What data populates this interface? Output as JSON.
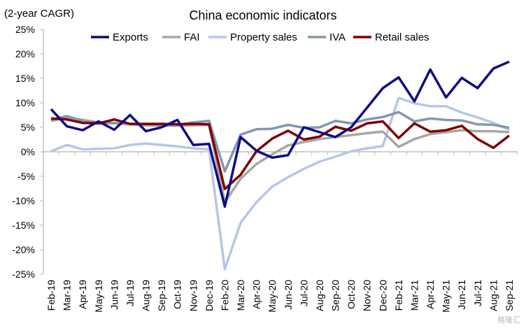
{
  "chart_data": {
    "type": "line",
    "title": "China economic indicators",
    "ylabel": "(2-year CAGR)",
    "xlabel": "",
    "ylim": [
      -25,
      25
    ],
    "yticks": [
      25,
      20,
      15,
      10,
      5,
      0,
      -5,
      -10,
      -15,
      -20,
      -25
    ],
    "ytick_labels": [
      "25%",
      "20%",
      "15%",
      "10%",
      "5%",
      "0%",
      "-5%",
      "-10%",
      "-15%",
      "-20%",
      "-25%"
    ],
    "grid": false,
    "legend": "top",
    "categories": [
      "Feb-19",
      "Mar-19",
      "Apr-19",
      "May-19",
      "Jun-19",
      "Jul-19",
      "Aug-19",
      "Sep-19",
      "Oct-19",
      "Nov-19",
      "Dec-19",
      "Feb-20",
      "Mar-20",
      "Apr-20",
      "May-20",
      "Jun-20",
      "Jul-20",
      "Aug-20",
      "Sep-20",
      "Oct-20",
      "Nov-20",
      "Dec-20",
      "Feb-21",
      "Mar-21",
      "Apr-21",
      "May-21",
      "Jun-21",
      "Jul-21",
      "Aug-21",
      "Sep-21"
    ],
    "series": [
      {
        "name": "Exports",
        "color": "#0c0c84",
        "values": [
          8.7,
          5.2,
          4.4,
          6.2,
          4.5,
          7.5,
          4.2,
          5.0,
          6.5,
          1.4,
          1.6,
          -11.2,
          3.0,
          0.2,
          -1.2,
          -0.7,
          5.0,
          4.0,
          3.0,
          5.0,
          9.0,
          13.0,
          15.2,
          10.3,
          16.8,
          11.1,
          15.1,
          13.0,
          17.0,
          18.4
        ]
      },
      {
        "name": "FAI",
        "color": "#a6a6a6",
        "values": [
          6.3,
          7.0,
          6.5,
          6.0,
          5.8,
          5.6,
          5.4,
          5.4,
          5.3,
          5.4,
          5.5,
          -10.3,
          -5.5,
          -2.5,
          -0.5,
          1.3,
          2.0,
          2.6,
          3.0,
          3.4,
          3.8,
          4.1,
          1.0,
          2.6,
          3.6,
          4.0,
          4.4,
          4.2,
          4.2,
          4.0
        ]
      },
      {
        "name": "Property sales",
        "color": "#b4c7e7",
        "values": [
          0.1,
          1.4,
          0.5,
          0.6,
          0.7,
          1.4,
          1.7,
          1.4,
          1.1,
          0.7,
          0.5,
          -24.0,
          -14.5,
          -10.3,
          -7.1,
          -5.2,
          -3.5,
          -2.0,
          -1.0,
          0.1,
          0.7,
          1.2,
          11.0,
          9.9,
          9.3,
          9.3,
          8.0,
          7.0,
          5.9,
          4.5
        ]
      },
      {
        "name": "IVA",
        "color": "#8497b0",
        "values": [
          6.5,
          7.3,
          6.3,
          5.8,
          5.9,
          5.6,
          5.6,
          5.4,
          5.5,
          6.0,
          6.3,
          -4.0,
          3.5,
          4.6,
          4.7,
          5.5,
          4.9,
          5.0,
          6.3,
          5.8,
          6.6,
          7.1,
          8.1,
          6.2,
          6.8,
          6.5,
          6.4,
          5.6,
          5.5,
          4.9
        ]
      },
      {
        "name": "Retail sales",
        "color": "#800000",
        "values": [
          6.8,
          6.6,
          5.9,
          5.8,
          6.6,
          5.7,
          5.7,
          5.7,
          5.6,
          5.7,
          5.6,
          -7.6,
          -4.7,
          0.1,
          2.7,
          4.3,
          2.5,
          3.1,
          5.1,
          4.3,
          5.8,
          6.2,
          2.8,
          5.8,
          4.1,
          4.4,
          5.3,
          2.6,
          0.8,
          3.3
        ]
      }
    ]
  },
  "watermark": "格隆汇"
}
